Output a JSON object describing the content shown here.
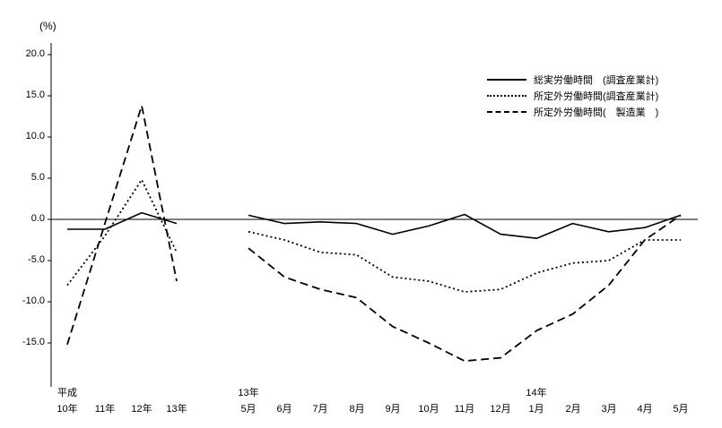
{
  "chart_data": {
    "type": "line",
    "title": "",
    "ylabel": "(%)",
    "ylim": [
      -20,
      20
    ],
    "y_tick_step": 5,
    "grid": false,
    "legend_position": "upper right",
    "line_color": "#000000",
    "y_tick_labels": [
      "20.0",
      "15.0",
      "10.0",
      "5.0",
      "0.0",
      "-5.0",
      "-10.0",
      "-15.0"
    ],
    "x_axis": {
      "era_label": "平成",
      "annual_categories": [
        "10年",
        "11年",
        "12年",
        "13年"
      ],
      "monthly_group_labels": [
        "13年",
        "14年"
      ],
      "monthly_categories": [
        "5月",
        "6月",
        "7月",
        "8月",
        "9月",
        "10月",
        "11月",
        "12月",
        "1月",
        "2月",
        "3月",
        "4月",
        "5月"
      ]
    },
    "series": [
      {
        "name": "総実労働時間　(調査産業計)",
        "line_style": "solid",
        "annual_values": [
          -1.2,
          -1.2,
          0.8,
          -0.5
        ],
        "monthly_values": [
          0.5,
          -0.5,
          -0.3,
          -0.5,
          -1.8,
          -0.8,
          0.6,
          -1.8,
          -2.3,
          -0.5,
          -1.5,
          -1.0,
          0.5
        ]
      },
      {
        "name": "所定外労働時間(調査産業計)",
        "line_style": "dotted",
        "annual_values": [
          -8.0,
          -2.0,
          4.8,
          -4.0
        ],
        "monthly_values": [
          -1.5,
          -2.5,
          -4.0,
          -4.3,
          -7.0,
          -7.5,
          -8.8,
          -8.5,
          -6.5,
          -5.3,
          -5.0,
          -2.5,
          -2.5
        ]
      },
      {
        "name": "所定外労働時間(　製造業　)",
        "line_style": "dashed",
        "annual_values": [
          -15.2,
          -0.5,
          13.8,
          -7.5
        ],
        "monthly_values": [
          -3.5,
          -7.0,
          -8.5,
          -9.5,
          -13.0,
          -15.0,
          -17.2,
          -16.8,
          -13.5,
          -11.5,
          -8.0,
          -2.5,
          0.5
        ]
      }
    ]
  }
}
